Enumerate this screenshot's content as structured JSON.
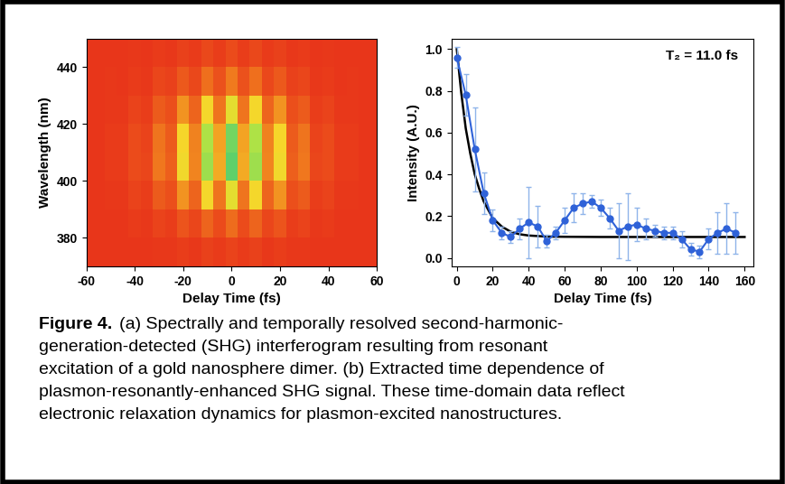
{
  "chart_data": [
    {
      "type": "heatmap",
      "x": [
        -60,
        -55,
        -50,
        -45,
        -40,
        -35,
        -30,
        -25,
        -20,
        -15,
        -10,
        -5,
        0,
        5,
        10,
        15,
        20,
        25,
        30,
        35,
        40,
        45,
        50,
        55,
        60
      ],
      "y": [
        375,
        385,
        395,
        405,
        415,
        425,
        435,
        445
      ],
      "cells": [
        [
          0,
          0,
          0,
          0,
          0,
          0,
          0.01,
          0.01,
          0.03,
          0.01,
          0.04,
          0.02,
          0.05,
          0.02,
          0.04,
          0.01,
          0.03,
          0.01,
          0.01,
          0,
          0,
          0,
          0,
          0,
          0
        ],
        [
          0,
          0,
          0,
          0,
          0.02,
          0.01,
          0.05,
          0.03,
          0.11,
          0.06,
          0.17,
          0.08,
          0.2,
          0.08,
          0.17,
          0.06,
          0.11,
          0.03,
          0.05,
          0.01,
          0.02,
          0,
          0,
          0,
          0
        ],
        [
          0,
          0,
          0.01,
          0.01,
          0.05,
          0.03,
          0.14,
          0.09,
          0.32,
          0.17,
          0.51,
          0.23,
          0.6,
          0.23,
          0.51,
          0.17,
          0.32,
          0.09,
          0.14,
          0.03,
          0.05,
          0.01,
          0.01,
          0,
          0
        ],
        [
          0,
          0,
          0.02,
          0.02,
          0.08,
          0.06,
          0.24,
          0.15,
          0.53,
          0.28,
          0.85,
          0.38,
          1,
          0.38,
          0.85,
          0.28,
          0.53,
          0.15,
          0.24,
          0.06,
          0.08,
          0.02,
          0.02,
          0,
          0
        ],
        [
          0,
          0,
          0.02,
          0.02,
          0.08,
          0.05,
          0.23,
          0.14,
          0.5,
          0.27,
          0.81,
          0.36,
          0.95,
          0.36,
          0.81,
          0.27,
          0.5,
          0.14,
          0.23,
          0.05,
          0.08,
          0.02,
          0.02,
          0,
          0
        ],
        [
          0,
          0,
          0.01,
          0.01,
          0.05,
          0.03,
          0.14,
          0.09,
          0.32,
          0.17,
          0.51,
          0.23,
          0.6,
          0.23,
          0.51,
          0.17,
          0.32,
          0.09,
          0.14,
          0.03,
          0.05,
          0.01,
          0.01,
          0,
          0
        ],
        [
          0,
          0,
          0.01,
          0,
          0.02,
          0.01,
          0.06,
          0.04,
          0.13,
          0.07,
          0.21,
          0.1,
          0.25,
          0.1,
          0.21,
          0.07,
          0.13,
          0.04,
          0.06,
          0.01,
          0.02,
          0,
          0.01,
          0,
          0
        ],
        [
          0,
          0,
          0,
          0,
          0.01,
          0,
          0.02,
          0.01,
          0.04,
          0.02,
          0.07,
          0.03,
          0.08,
          0.03,
          0.07,
          0.02,
          0.04,
          0.01,
          0.02,
          0,
          0.01,
          0,
          0,
          0,
          0
        ]
      ],
      "cell_range": [
        0,
        1
      ],
      "xlim": [
        -60,
        60
      ],
      "xticks": [
        -60,
        -40,
        -20,
        0,
        20,
        40,
        60
      ],
      "ylim": [
        370,
        450
      ],
      "yticks": [
        380,
        400,
        420,
        440
      ],
      "x_label": "Delay Time (fs)",
      "y_label": "Wavelength (nm)"
    },
    {
      "type": "line",
      "series": [
        {
          "x": [
            0,
            5,
            10,
            15,
            20,
            25,
            30,
            35,
            40,
            45,
            50,
            55,
            60,
            65,
            70,
            75,
            80,
            85,
            90,
            95,
            100,
            105,
            110,
            115,
            120,
            125,
            130,
            135,
            140,
            145,
            150,
            155
          ],
          "values": [
            0.96,
            0.78,
            0.52,
            0.31,
            0.18,
            0.12,
            0.1,
            0.14,
            0.17,
            0.15,
            0.08,
            0.12,
            0.18,
            0.24,
            0.26,
            0.27,
            0.24,
            0.19,
            0.13,
            0.15,
            0.16,
            0.14,
            0.13,
            0.12,
            0.12,
            0.09,
            0.04,
            0.03,
            0.09,
            0.12,
            0.14,
            0.12
          ],
          "errors": [
            0.05,
            0.1,
            0.2,
            0.1,
            0.05,
            0.03,
            0.03,
            0.05,
            0.17,
            0.1,
            0.03,
            0.03,
            0.06,
            0.07,
            0.05,
            0.03,
            0.04,
            0.05,
            0.13,
            0.16,
            0.08,
            0.05,
            0.03,
            0.03,
            0.03,
            0.04,
            0.03,
            0.03,
            0.05,
            0.1,
            0.12,
            0.1
          ],
          "color": "#2f62d8",
          "marker": "o"
        },
        {
          "x": [
            0,
            2.5,
            5,
            7.5,
            10,
            12.5,
            15,
            20,
            25,
            30,
            35,
            40,
            50,
            60,
            80,
            100,
            120,
            140,
            160
          ],
          "values": [
            1.0,
            0.79,
            0.62,
            0.5,
            0.4,
            0.33,
            0.27,
            0.19,
            0.15,
            0.125,
            0.113,
            0.107,
            0.102,
            0.101,
            0.1,
            0.1,
            0.1,
            0.1,
            0.1
          ],
          "color": "#000000"
        }
      ],
      "xlim": [
        -3,
        165
      ],
      "xticks": [
        0,
        20,
        40,
        60,
        80,
        100,
        120,
        140,
        160
      ],
      "ylim": [
        -0.04,
        1.05
      ],
      "yticks": [
        {
          "value": 0,
          "label": "0.0"
        },
        {
          "value": 0.2,
          "label": "0.2"
        },
        {
          "value": 0.4,
          "label": "0.4"
        },
        {
          "value": 0.6,
          "label": "0.6"
        },
        {
          "value": 0.8,
          "label": "0.8"
        },
        {
          "value": 1.0,
          "label": "1.0"
        }
      ],
      "x_label": "Delay Time (fs)",
      "y_label": "Intensity (A.U.)",
      "annotation": "T₂ = 11.0 fs"
    }
  ],
  "caption_label": "Figure 4.",
  "caption": "(a) Spectrally and temporally resolved second-harmonic-generation-detected (SHG) interferogram resulting from resonant excitation of a gold nanosphere dimer. (b) Extracted time dependence of plasmon-resonantly-enhanced SHG signal. These time-domain data reflect electronic relaxation dynamics for plasmon-excited nanostructures."
}
